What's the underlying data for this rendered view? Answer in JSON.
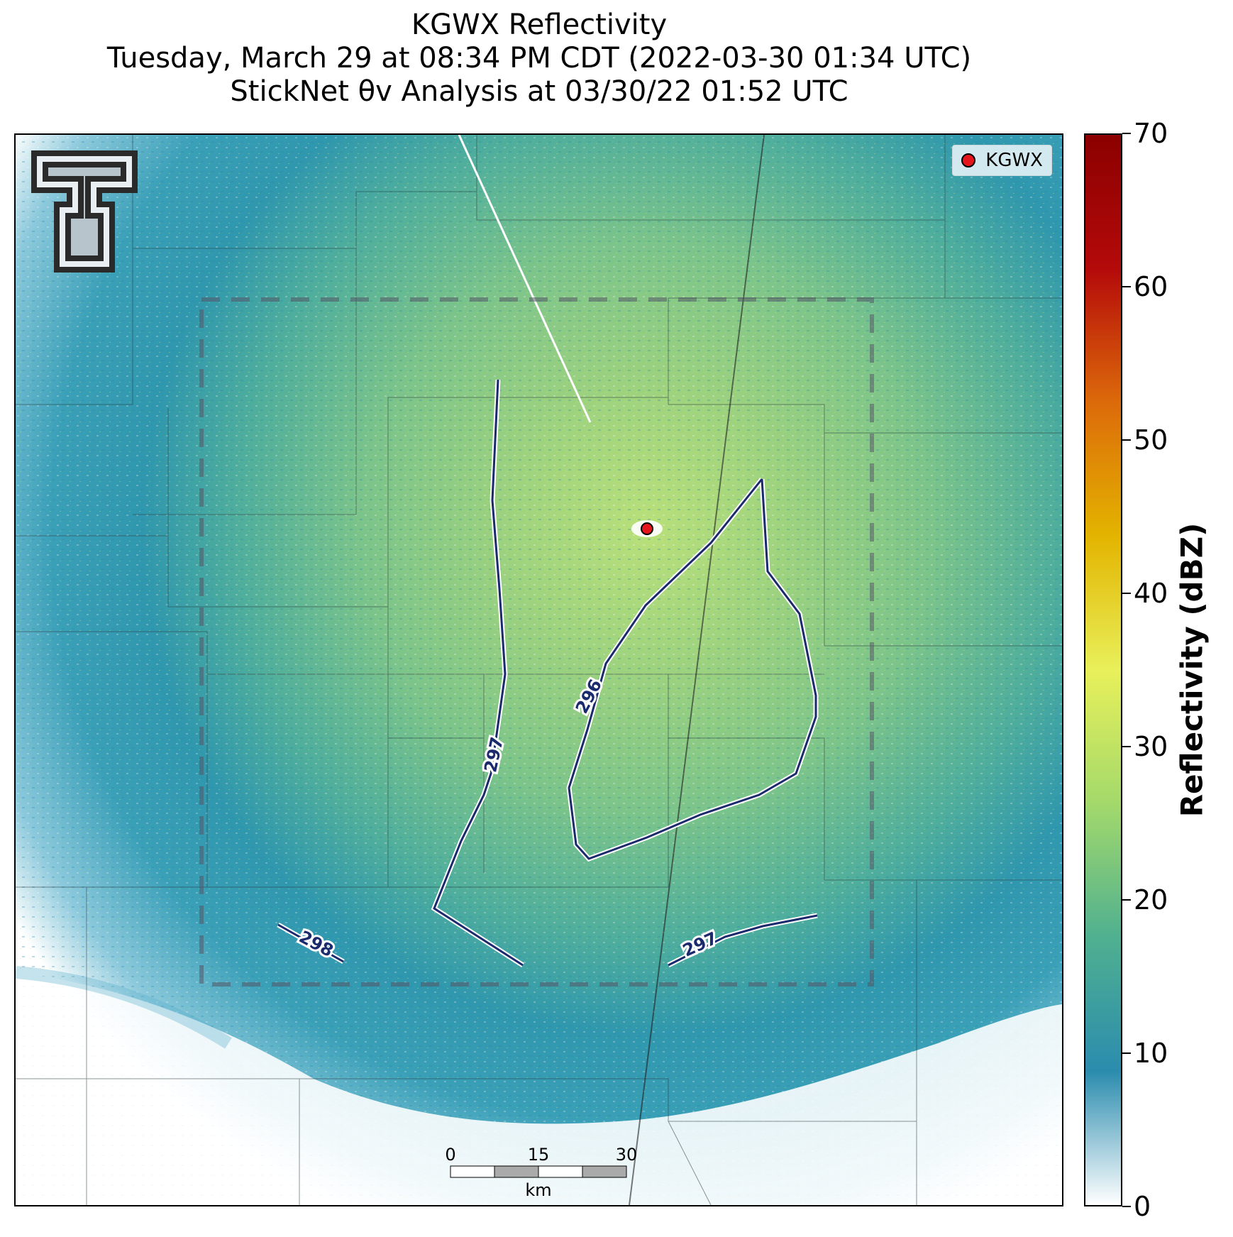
{
  "title": {
    "line1": "KGWX Reflectivity",
    "line2": "Tuesday, March 29 at 08:34 PM CDT (2022-03-30 01:34 UTC)",
    "line3": "StickNet θv Analysis at 03/30/22 01:52 UTC"
  },
  "legend": {
    "radar_label": "KGWX",
    "radar_color": "#e4161b"
  },
  "contours": {
    "line_color": "#1a2a6c",
    "labels": [
      "296",
      "297",
      "297",
      "298"
    ]
  },
  "scale_bar": {
    "ticks": [
      "0",
      "15",
      "30"
    ],
    "unit": "km"
  },
  "colorbar": {
    "title": "Reflectivity (dBZ)",
    "ticks": [
      "0",
      "10",
      "20",
      "30",
      "40",
      "50",
      "60",
      "70"
    ],
    "range": [
      0,
      70
    ],
    "colors": [
      "#ffffff",
      "#2b8cae",
      "#4fb090",
      "#a3d96b",
      "#e8f05a",
      "#e3b400",
      "#dc6a0a",
      "#b40a0a",
      "#8b0000"
    ]
  },
  "logo": {
    "name": "Texas Tech Double T"
  }
}
